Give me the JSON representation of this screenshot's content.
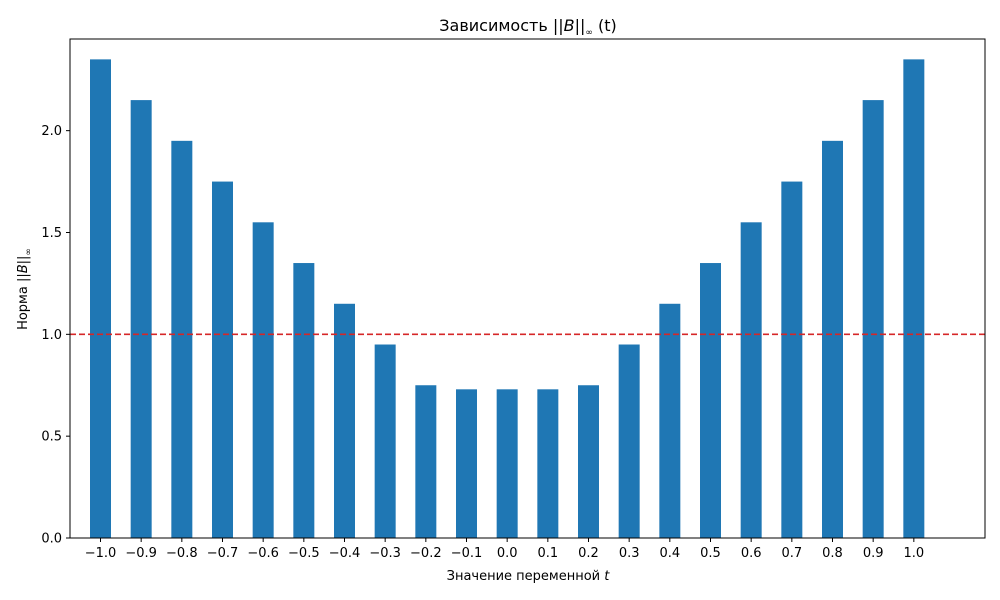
{
  "chart_data": {
    "type": "bar",
    "title": {
      "prefix": "Зависимость ",
      "math": "||B||",
      "sub": "∞",
      "suffix": " (t)"
    },
    "xlabel": {
      "text": "Значение переменной ",
      "math": "t"
    },
    "ylabel": {
      "text": "Норма ",
      "math": "||B||",
      "sub": "∞"
    },
    "categories": [
      "−1.0",
      "−0.9",
      "−0.8",
      "−0.7",
      "−0.6",
      "−0.5",
      "−0.4",
      "−0.3",
      "−0.2",
      "−0.1",
      "0.0",
      "0.1",
      "0.2",
      "0.3",
      "0.4",
      "0.5",
      "0.6",
      "0.7",
      "0.8",
      "0.9",
      "1.0"
    ],
    "x": [
      -1.0,
      -0.9,
      -0.8,
      -0.7,
      -0.6,
      -0.5,
      -0.4,
      -0.3,
      -0.2,
      -0.1,
      0.0,
      0.1,
      0.2,
      0.3,
      0.4,
      0.5,
      0.6,
      0.7,
      0.8,
      0.9,
      1.0
    ],
    "values": [
      2.35,
      2.15,
      1.95,
      1.75,
      1.55,
      1.35,
      1.15,
      0.95,
      0.75,
      0.73,
      0.73,
      0.73,
      0.75,
      0.95,
      1.15,
      1.35,
      1.55,
      1.75,
      1.95,
      2.15,
      2.35
    ],
    "ylim": [
      0,
      2.45
    ],
    "yticks": [
      "0.0",
      "0.5",
      "1.0",
      "1.5",
      "2.0"
    ],
    "reference_line": {
      "y": 1.0,
      "style": "dashed",
      "color": "#d62728"
    },
    "bar_color": "#1f77b4",
    "grid": false,
    "legend": "none"
  }
}
